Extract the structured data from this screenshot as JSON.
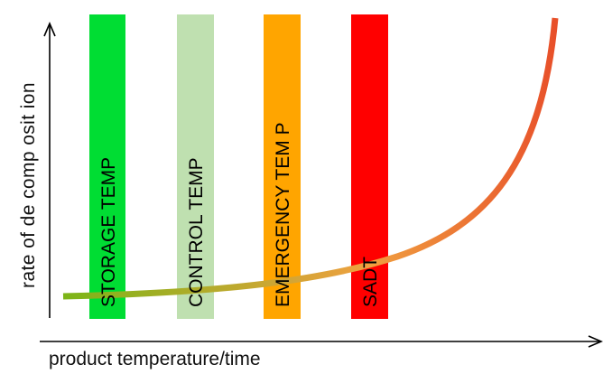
{
  "x_axis_label": "product temperature/time",
  "y_axis_label": "rate of de comp osit ion",
  "zones": [
    {
      "label": "STORAGE TEMP",
      "color": "#00dd33"
    },
    {
      "label": "CONTROL TEMP",
      "color": "#bfe0b0"
    },
    {
      "label": "EMERGENCY TEM P",
      "color": "#ffa500"
    },
    {
      "label": "SADT",
      "color": "#ff0000"
    }
  ],
  "curve_colors": {
    "start": "#7cb518",
    "middle": "#f0a040",
    "end": "#e8502a"
  }
}
